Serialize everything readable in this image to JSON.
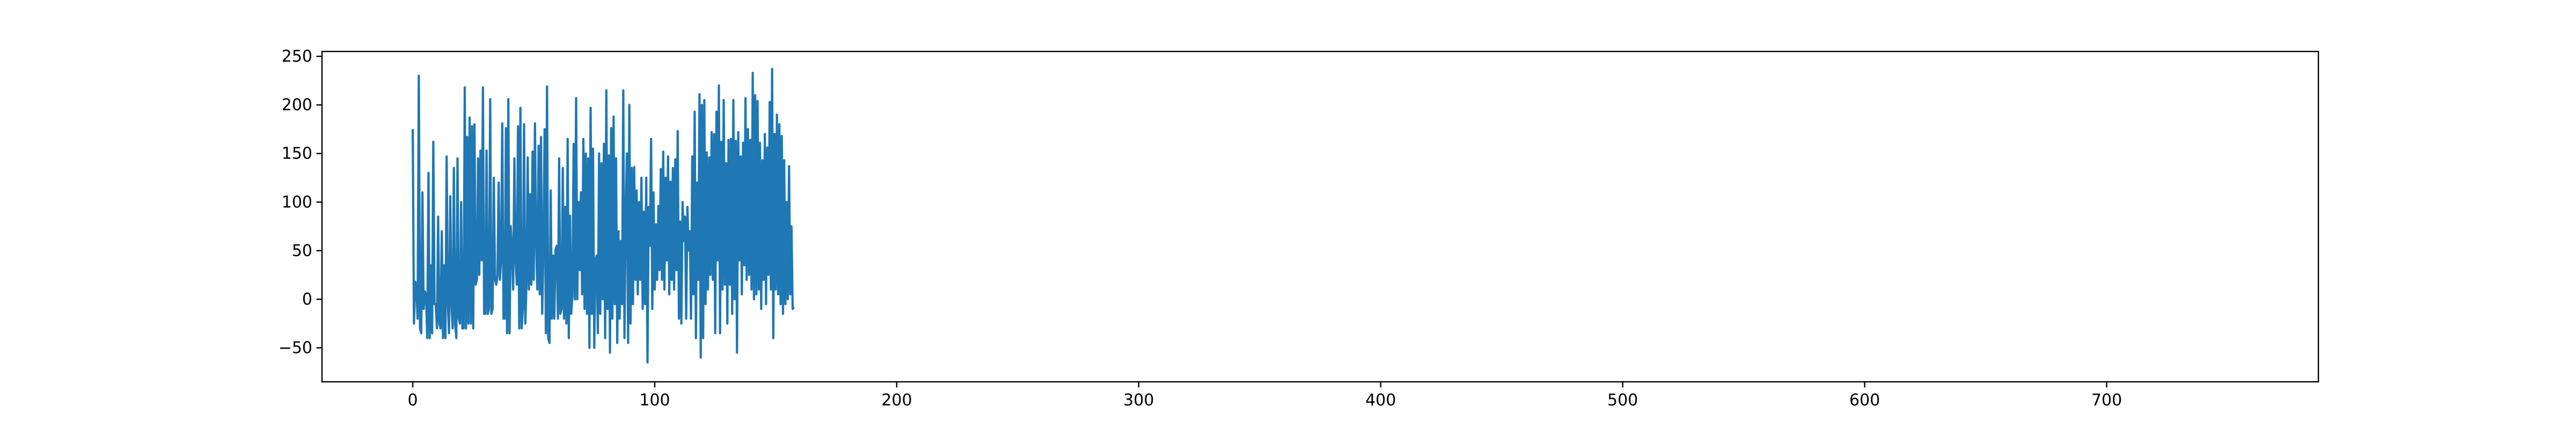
{
  "chart_data": {
    "type": "line",
    "title": "",
    "xlabel": "",
    "ylabel": "",
    "xlim": [
      -37.5,
      787.5
    ],
    "ylim": [
      -85,
      255
    ],
    "x_ticks": [
      0,
      100,
      200,
      300,
      400,
      500,
      600,
      700
    ],
    "y_ticks": [
      -50,
      0,
      50,
      100,
      150,
      200,
      250
    ],
    "x_tick_labels": [
      "0",
      "100",
      "200",
      "300",
      "400",
      "500",
      "600",
      "700"
    ],
    "y_tick_labels": [
      "−50",
      "0",
      "50",
      "100",
      "150",
      "200",
      "250"
    ],
    "grid": false,
    "legend": "none",
    "series": [
      {
        "color": "#1f77b4",
        "x_start": 0,
        "x_step": 0.5,
        "values": [
          175,
          -25,
          18,
          15,
          -20,
          230,
          -30,
          -35,
          110,
          -10,
          8,
          5,
          -40,
          130,
          -40,
          35,
          -35,
          162,
          -5,
          -5,
          -30,
          85,
          -25,
          -30,
          70,
          -40,
          35,
          -40,
          147,
          -5,
          -35,
          106,
          -5,
          -30,
          135,
          -25,
          -40,
          145,
          -20,
          -25,
          100,
          -30,
          -30,
          218,
          -30,
          167,
          -25,
          187,
          -25,
          178,
          -30,
          180,
          15,
          20,
          145,
          25,
          153,
          40,
          218,
          -15,
          -15,
          153,
          -15,
          -10,
          206,
          -15,
          -10,
          125,
          20,
          15,
          25,
          120,
          20,
          40,
          181,
          -20,
          -20,
          176,
          -35,
          206,
          -35,
          75,
          50,
          10,
          145,
          40,
          15,
          178,
          -30,
          197,
          -30,
          -10,
          180,
          -25,
          15,
          146,
          10,
          108,
          15,
          152,
          20,
          181,
          55,
          10,
          158,
          5,
          167,
          -15,
          55,
          175,
          -35,
          219,
          -40,
          -45,
          112,
          -20,
          45,
          -20,
          51,
          55,
          -20,
          145,
          -15,
          -10,
          135,
          -20,
          95,
          -25,
          165,
          -40,
          86,
          -15,
          5,
          160,
          0,
          207,
          0,
          100,
          30,
          110,
          5,
          165,
          -10,
          150,
          -15,
          145,
          -50,
          197,
          -15,
          155,
          -50,
          40,
          45,
          -35,
          150,
          -15,
          140,
          0,
          160,
          -40,
          215,
          -10,
          148,
          -55,
          176,
          -20,
          188,
          -5,
          145,
          -45,
          70,
          -20,
          60,
          -5,
          215,
          -40,
          85,
          150,
          -45,
          200,
          -25,
          135,
          -5,
          136,
          20,
          112,
          5,
          100,
          20,
          125,
          -10,
          90,
          -5,
          125,
          -65,
          95,
          55,
          165,
          -10,
          110,
          10,
          77,
          20,
          96,
          30,
          134,
          20,
          152,
          10,
          125,
          40,
          147,
          5,
          121,
          20,
          135,
          10,
          144,
          30,
          173,
          -20,
          80,
          -25,
          100,
          60,
          85,
          -20,
          95,
          50,
          70,
          -20,
          147,
          5,
          193,
          -40,
          120,
          20,
          211,
          -60,
          200,
          -40,
          205,
          -5,
          151,
          10,
          146,
          25,
          172,
          20,
          170,
          -35,
          193,
          40,
          220,
          -35,
          162,
          10,
          205,
          15,
          140,
          -25,
          164,
          15,
          165,
          -15,
          205,
          0,
          163,
          -55,
          172,
          40,
          147,
          5,
          161,
          35,
          207,
          20,
          175,
          25,
          164,
          10,
          233,
          0,
          210,
          5,
          204,
          10,
          161,
          -10,
          143,
          20,
          170,
          -5,
          156,
          25,
          203,
          10,
          237,
          -40,
          170,
          10,
          190,
          5,
          180,
          -5,
          168,
          -15,
          143,
          -5,
          100,
          0,
          137,
          5,
          75,
          -10,
          -8
        ]
      }
    ]
  }
}
